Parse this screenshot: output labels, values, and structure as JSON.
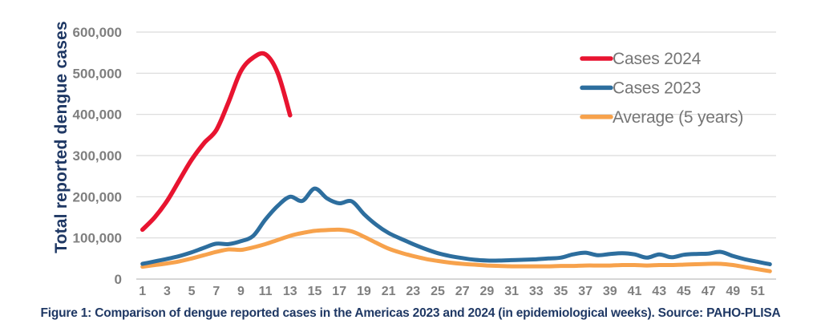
{
  "figure": {
    "caption": "Figure 1: Comparison of dengue reported cases in the Americas 2023 and 2024 (in epidemiological weeks). Source: PAHO-PLISA"
  },
  "chart_data": {
    "type": "line",
    "title": "",
    "xlabel": "",
    "ylabel": "Total reported dengue cases",
    "ylim": [
      0,
      600000
    ],
    "x_range": [
      1,
      52
    ],
    "grid": "horizontal",
    "legend_position": "inside-top-right",
    "y_ticks": [
      {
        "value": 0,
        "label": "0"
      },
      {
        "value": 100000,
        "label": "100,000"
      },
      {
        "value": 200000,
        "label": "200,000"
      },
      {
        "value": 300000,
        "label": "300,000"
      },
      {
        "value": 400000,
        "label": "400,000"
      },
      {
        "value": 500000,
        "label": "500,000"
      },
      {
        "value": 600000,
        "label": "600,000"
      }
    ],
    "x_ticks": [
      1,
      3,
      5,
      7,
      9,
      11,
      13,
      15,
      17,
      19,
      21,
      23,
      25,
      27,
      29,
      31,
      33,
      35,
      37,
      39,
      41,
      43,
      45,
      47,
      49,
      51
    ],
    "colors": {
      "gridline": "#DADADA",
      "axis_line": "#C8C8C8",
      "tick_label": "#7F7F7F",
      "legend_text": "#757575",
      "axis_title": "#1F3864",
      "caption": "#1F3864"
    },
    "series": [
      {
        "name": "Cases 2024",
        "color": "#E81430",
        "start_week": 1,
        "values": [
          120000,
          150000,
          190000,
          240000,
          290000,
          330000,
          362000,
          430000,
          505000,
          538000,
          546000,
          500000,
          398000
        ]
      },
      {
        "name": "Cases 2023",
        "color": "#2D6E9E",
        "start_week": 1,
        "values": [
          37000,
          43000,
          49000,
          56000,
          65000,
          76000,
          86000,
          85000,
          92000,
          105000,
          145000,
          178000,
          200000,
          190000,
          220000,
          196000,
          184000,
          189000,
          158000,
          132000,
          112000,
          98000,
          85000,
          73000,
          63000,
          56000,
          51000,
          47000,
          45000,
          45000,
          46000,
          47000,
          48000,
          50000,
          52000,
          60000,
          64000,
          58000,
          61000,
          63000,
          60000,
          52000,
          60000,
          53000,
          59000,
          61000,
          62000,
          66000,
          56000,
          48000,
          42000,
          36000
        ]
      },
      {
        "name": "Average (5 years)",
        "color": "#F7A24C",
        "start_week": 1,
        "values": [
          30000,
          34000,
          38000,
          43000,
          50000,
          58000,
          66000,
          72000,
          71000,
          77000,
          85000,
          95000,
          105000,
          112000,
          117000,
          119000,
          120000,
          116000,
          103000,
          88000,
          74000,
          64000,
          56000,
          49000,
          44000,
          40000,
          37000,
          35000,
          33000,
          32000,
          31000,
          31000,
          31000,
          31000,
          32000,
          32000,
          33000,
          33000,
          33000,
          34000,
          34000,
          33000,
          34000,
          34000,
          35000,
          36000,
          37000,
          37000,
          34000,
          29000,
          24000,
          19000
        ]
      }
    ]
  }
}
